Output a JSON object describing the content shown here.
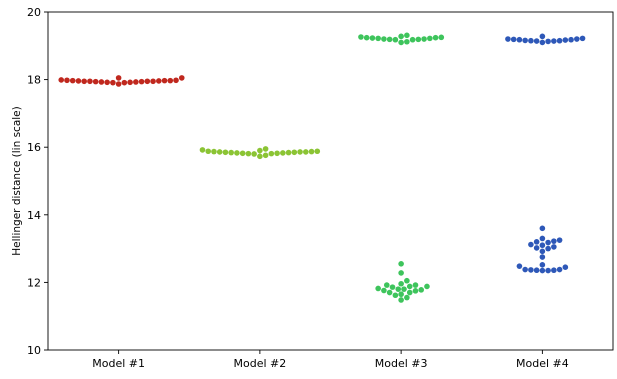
{
  "chart_data": {
    "type": "scatter",
    "title": "",
    "xlabel": "",
    "ylabel": "Hellinger distance (lin scale)",
    "categories": [
      "Model #1",
      "Model #2",
      "Model #3",
      "Model #4"
    ],
    "ylim": [
      10,
      20
    ],
    "yticks": [
      10,
      12,
      14,
      16,
      18,
      20
    ],
    "grid": false,
    "legend": "none",
    "series": [
      {
        "category": "Model #1",
        "color": "#c0281e",
        "values": [
          17.99,
          17.98,
          17.97,
          17.97,
          17.96,
          17.95,
          17.95,
          17.94,
          17.93,
          17.92,
          17.91,
          18.05,
          17.87,
          18.05,
          17.98,
          17.97,
          17.96,
          17.95,
          17.95,
          17.94,
          17.93,
          17.92,
          17.91
        ]
      },
      {
        "category": "Model #2",
        "color": "#8bc434",
        "values": [
          15.88,
          15.88,
          15.87,
          15.86,
          15.85,
          15.84,
          15.83,
          15.82,
          15.81,
          15.95,
          15.92,
          15.76,
          15.73,
          15.9,
          15.86,
          15.85,
          15.84,
          15.83,
          15.82,
          15.81,
          15.8,
          15.87,
          15.86
        ]
      },
      {
        "category": "Model #3",
        "color": "#3ec45c",
        "values": [
          19.25,
          19.24,
          19.23,
          19.22,
          19.2,
          19.19,
          19.18,
          19.31,
          19.28,
          19.12,
          19.1,
          19.22,
          19.2,
          19.19,
          19.18,
          19.24,
          19.26,
          12.55,
          12.28,
          12.05,
          11.92,
          11.88,
          11.82,
          11.8,
          11.78,
          11.76,
          11.75,
          11.7,
          11.62,
          11.55,
          11.48,
          11.88,
          11.86,
          11.92,
          11.96,
          11.7,
          11.65,
          11.8
        ]
      },
      {
        "category": "Model #4",
        "color": "#2e58b8",
        "values": [
          19.2,
          19.19,
          19.18,
          19.17,
          19.16,
          19.15,
          19.14,
          19.28,
          19.1,
          19.15,
          19.14,
          19.13,
          19.2,
          19.18,
          19.22,
          13.6,
          13.3,
          13.25,
          13.18,
          13.1,
          13.05,
          13.0,
          12.92,
          12.75,
          12.52,
          12.45,
          12.38,
          12.37,
          12.36,
          12.35,
          12.35,
          12.36,
          12.38,
          12.48,
          13.22,
          13.2,
          13.12,
          13.02
        ]
      }
    ]
  }
}
